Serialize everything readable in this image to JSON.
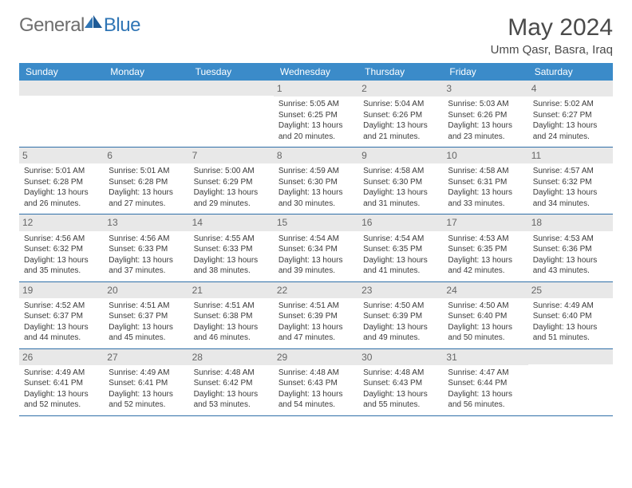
{
  "logo": {
    "word1": "General",
    "word2": "Blue"
  },
  "header": {
    "month_title": "May 2024",
    "location": "Umm Qasr, Basra, Iraq"
  },
  "colors": {
    "header_bg": "#3b8bc9",
    "row_border": "#2f6fa8",
    "daynum_bg": "#e8e8e8",
    "logo_gray": "#6e6e6e",
    "logo_blue": "#2f75b5"
  },
  "weekdays": [
    "Sunday",
    "Monday",
    "Tuesday",
    "Wednesday",
    "Thursday",
    "Friday",
    "Saturday"
  ],
  "weeks": [
    [
      {
        "empty": true
      },
      {
        "empty": true
      },
      {
        "empty": true
      },
      {
        "num": "1",
        "sunrise": "Sunrise: 5:05 AM",
        "sunset": "Sunset: 6:25 PM",
        "day1": "Daylight: 13 hours",
        "day2": "and 20 minutes."
      },
      {
        "num": "2",
        "sunrise": "Sunrise: 5:04 AM",
        "sunset": "Sunset: 6:26 PM",
        "day1": "Daylight: 13 hours",
        "day2": "and 21 minutes."
      },
      {
        "num": "3",
        "sunrise": "Sunrise: 5:03 AM",
        "sunset": "Sunset: 6:26 PM",
        "day1": "Daylight: 13 hours",
        "day2": "and 23 minutes."
      },
      {
        "num": "4",
        "sunrise": "Sunrise: 5:02 AM",
        "sunset": "Sunset: 6:27 PM",
        "day1": "Daylight: 13 hours",
        "day2": "and 24 minutes."
      }
    ],
    [
      {
        "num": "5",
        "sunrise": "Sunrise: 5:01 AM",
        "sunset": "Sunset: 6:28 PM",
        "day1": "Daylight: 13 hours",
        "day2": "and 26 minutes."
      },
      {
        "num": "6",
        "sunrise": "Sunrise: 5:01 AM",
        "sunset": "Sunset: 6:28 PM",
        "day1": "Daylight: 13 hours",
        "day2": "and 27 minutes."
      },
      {
        "num": "7",
        "sunrise": "Sunrise: 5:00 AM",
        "sunset": "Sunset: 6:29 PM",
        "day1": "Daylight: 13 hours",
        "day2": "and 29 minutes."
      },
      {
        "num": "8",
        "sunrise": "Sunrise: 4:59 AM",
        "sunset": "Sunset: 6:30 PM",
        "day1": "Daylight: 13 hours",
        "day2": "and 30 minutes."
      },
      {
        "num": "9",
        "sunrise": "Sunrise: 4:58 AM",
        "sunset": "Sunset: 6:30 PM",
        "day1": "Daylight: 13 hours",
        "day2": "and 31 minutes."
      },
      {
        "num": "10",
        "sunrise": "Sunrise: 4:58 AM",
        "sunset": "Sunset: 6:31 PM",
        "day1": "Daylight: 13 hours",
        "day2": "and 33 minutes."
      },
      {
        "num": "11",
        "sunrise": "Sunrise: 4:57 AM",
        "sunset": "Sunset: 6:32 PM",
        "day1": "Daylight: 13 hours",
        "day2": "and 34 minutes."
      }
    ],
    [
      {
        "num": "12",
        "sunrise": "Sunrise: 4:56 AM",
        "sunset": "Sunset: 6:32 PM",
        "day1": "Daylight: 13 hours",
        "day2": "and 35 minutes."
      },
      {
        "num": "13",
        "sunrise": "Sunrise: 4:56 AM",
        "sunset": "Sunset: 6:33 PM",
        "day1": "Daylight: 13 hours",
        "day2": "and 37 minutes."
      },
      {
        "num": "14",
        "sunrise": "Sunrise: 4:55 AM",
        "sunset": "Sunset: 6:33 PM",
        "day1": "Daylight: 13 hours",
        "day2": "and 38 minutes."
      },
      {
        "num": "15",
        "sunrise": "Sunrise: 4:54 AM",
        "sunset": "Sunset: 6:34 PM",
        "day1": "Daylight: 13 hours",
        "day2": "and 39 minutes."
      },
      {
        "num": "16",
        "sunrise": "Sunrise: 4:54 AM",
        "sunset": "Sunset: 6:35 PM",
        "day1": "Daylight: 13 hours",
        "day2": "and 41 minutes."
      },
      {
        "num": "17",
        "sunrise": "Sunrise: 4:53 AM",
        "sunset": "Sunset: 6:35 PM",
        "day1": "Daylight: 13 hours",
        "day2": "and 42 minutes."
      },
      {
        "num": "18",
        "sunrise": "Sunrise: 4:53 AM",
        "sunset": "Sunset: 6:36 PM",
        "day1": "Daylight: 13 hours",
        "day2": "and 43 minutes."
      }
    ],
    [
      {
        "num": "19",
        "sunrise": "Sunrise: 4:52 AM",
        "sunset": "Sunset: 6:37 PM",
        "day1": "Daylight: 13 hours",
        "day2": "and 44 minutes."
      },
      {
        "num": "20",
        "sunrise": "Sunrise: 4:51 AM",
        "sunset": "Sunset: 6:37 PM",
        "day1": "Daylight: 13 hours",
        "day2": "and 45 minutes."
      },
      {
        "num": "21",
        "sunrise": "Sunrise: 4:51 AM",
        "sunset": "Sunset: 6:38 PM",
        "day1": "Daylight: 13 hours",
        "day2": "and 46 minutes."
      },
      {
        "num": "22",
        "sunrise": "Sunrise: 4:51 AM",
        "sunset": "Sunset: 6:39 PM",
        "day1": "Daylight: 13 hours",
        "day2": "and 47 minutes."
      },
      {
        "num": "23",
        "sunrise": "Sunrise: 4:50 AM",
        "sunset": "Sunset: 6:39 PM",
        "day1": "Daylight: 13 hours",
        "day2": "and 49 minutes."
      },
      {
        "num": "24",
        "sunrise": "Sunrise: 4:50 AM",
        "sunset": "Sunset: 6:40 PM",
        "day1": "Daylight: 13 hours",
        "day2": "and 50 minutes."
      },
      {
        "num": "25",
        "sunrise": "Sunrise: 4:49 AM",
        "sunset": "Sunset: 6:40 PM",
        "day1": "Daylight: 13 hours",
        "day2": "and 51 minutes."
      }
    ],
    [
      {
        "num": "26",
        "sunrise": "Sunrise: 4:49 AM",
        "sunset": "Sunset: 6:41 PM",
        "day1": "Daylight: 13 hours",
        "day2": "and 52 minutes."
      },
      {
        "num": "27",
        "sunrise": "Sunrise: 4:49 AM",
        "sunset": "Sunset: 6:41 PM",
        "day1": "Daylight: 13 hours",
        "day2": "and 52 minutes."
      },
      {
        "num": "28",
        "sunrise": "Sunrise: 4:48 AM",
        "sunset": "Sunset: 6:42 PM",
        "day1": "Daylight: 13 hours",
        "day2": "and 53 minutes."
      },
      {
        "num": "29",
        "sunrise": "Sunrise: 4:48 AM",
        "sunset": "Sunset: 6:43 PM",
        "day1": "Daylight: 13 hours",
        "day2": "and 54 minutes."
      },
      {
        "num": "30",
        "sunrise": "Sunrise: 4:48 AM",
        "sunset": "Sunset: 6:43 PM",
        "day1": "Daylight: 13 hours",
        "day2": "and 55 minutes."
      },
      {
        "num": "31",
        "sunrise": "Sunrise: 4:47 AM",
        "sunset": "Sunset: 6:44 PM",
        "day1": "Daylight: 13 hours",
        "day2": "and 56 minutes."
      },
      {
        "empty": true
      }
    ]
  ]
}
